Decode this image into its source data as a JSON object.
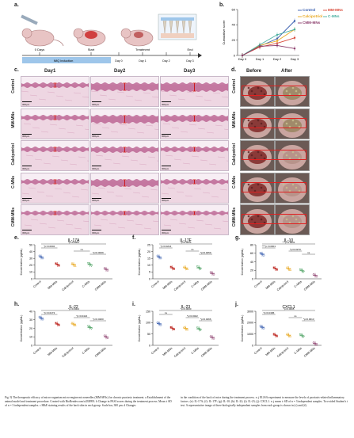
{
  "panel_a": {
    "letter": "a.",
    "labels": [
      "0 Days",
      "Start",
      "Treatment",
      "End"
    ],
    "imq_label": "IMQ induction",
    "days": [
      "Day 0",
      "Day 1",
      "Day 2",
      "Day 3"
    ]
  },
  "panel_b": {
    "letter": "b.",
    "chart_data": {
      "type": "line",
      "title": "",
      "xlabel": "",
      "ylabel": "Cumulative score",
      "categories": [
        "Day 0",
        "Day 1",
        "Day 2",
        "Day 3"
      ],
      "ylim": [
        0,
        60
      ],
      "yticks": [
        0,
        20,
        40,
        60
      ],
      "series": [
        {
          "name": "Control",
          "color": "#3a5fb0",
          "values": [
            0,
            12,
            22,
            45
          ]
        },
        {
          "name": "MM-MNs",
          "color": "#d94a3a",
          "values": [
            0,
            11,
            16,
            23
          ]
        },
        {
          "name": "Calcipotriol",
          "color": "#e8a820",
          "values": [
            0,
            13,
            19,
            34
          ]
        },
        {
          "name": "C-MNs",
          "color": "#4ab0a0",
          "values": [
            0,
            14,
            27,
            34
          ]
        },
        {
          "name": "CMM-MNs",
          "color": "#8a3a6a",
          "values": [
            0,
            12,
            13,
            9
          ]
        }
      ]
    }
  },
  "panel_c": {
    "letter": "c.",
    "columns": [
      "Day1",
      "Day2",
      "Day3"
    ],
    "rows": [
      "Control",
      "MM-MNs",
      "Calcipotriol",
      "C-MNs",
      "CMM-MNs"
    ],
    "scalebar": "300μm"
  },
  "panel_d": {
    "letter": "d.",
    "columns": [
      "Before",
      "After"
    ]
  },
  "bar_panels": [
    {
      "letter": "e.",
      "title": "IL-17A",
      "ylabel": "Concentration (pg/mL)",
      "ylim": [
        0,
        50
      ],
      "yticks": [
        0,
        10,
        20,
        30,
        40,
        50
      ],
      "categories": [
        "Control",
        "MM-MNs",
        "Calcipotriol",
        "C-MNs",
        "CMM-MNs"
      ],
      "values": [
        32,
        21,
        21,
        21,
        14
      ],
      "colors": [
        "#3a5fb0",
        "#c0302a",
        "#e8a820",
        "#4aa060",
        "#8a3a6a"
      ],
      "markers": [
        "circle",
        "square",
        "triangle",
        "triangle-down",
        "diamond"
      ],
      "sig": [
        "*p=0.0002",
        "*p=0.0004",
        "ns",
        "*p=0.0009"
      ]
    },
    {
      "letter": "f.",
      "title": "IL-17F",
      "ylabel": "Concentration (pg/mL)",
      "ylim": [
        0,
        25
      ],
      "yticks": [
        0,
        5,
        10,
        15,
        20,
        25
      ],
      "categories": [
        "Control",
        "MM-MNs",
        "Calcipotriol",
        "C-MNs",
        "CMM-MNs"
      ],
      "values": [
        16,
        8,
        8,
        8,
        4
      ],
      "colors": [
        "#3a5fb0",
        "#c0302a",
        "#e8a820",
        "#4aa060",
        "#8a3a6a"
      ],
      "markers": [
        "circle",
        "square",
        "triangle",
        "triangle-down",
        "diamond"
      ],
      "sig": [
        "*p=0.0214",
        "*p=0.0035",
        "ns",
        "*p=0.0259"
      ]
    },
    {
      "letter": "g.",
      "title": "IL-10",
      "ylabel": "Concentration (pg/mL)",
      "ylim": [
        0,
        80
      ],
      "yticks": [
        0,
        20,
        40,
        60,
        80
      ],
      "categories": [
        "Control",
        "MM-MNs",
        "Calcipotriol",
        "C-MNs",
        "CMM-MNs"
      ],
      "values": [
        58,
        24,
        24,
        19,
        8
      ],
      "colors": [
        "#3a5fb0",
        "#c0302a",
        "#e8a820",
        "#4aa060",
        "#8a3a6a"
      ],
      "markers": [
        "circle",
        "square",
        "triangle",
        "triangle-down",
        "diamond"
      ],
      "sig": [
        "****p<0.0001",
        "***p<0.0001",
        "*p=0.0270",
        "ns"
      ]
    },
    {
      "letter": "h.",
      "title": "IL-22",
      "ylabel": "Concentration (pg/mL)",
      "ylim": [
        0,
        40
      ],
      "yticks": [
        0,
        10,
        20,
        30,
        40
      ],
      "categories": [
        "Control",
        "MM-MNs",
        "Calcipotriol",
        "C-MNs",
        "CMM-MNs"
      ],
      "values": [
        32,
        25,
        25,
        21,
        10
      ],
      "colors": [
        "#3a5fb0",
        "#c0302a",
        "#e8a820",
        "#4aa060",
        "#8a3a6a"
      ],
      "markers": [
        "circle",
        "square",
        "triangle",
        "triangle-down",
        "diamond"
      ],
      "sig": [
        "*p=0.0173",
        "*p=0.0004",
        "*p=0.0424",
        "*p=0.0200"
      ]
    },
    {
      "letter": "i.",
      "title": "IL-23",
      "ylabel": "Concentration (pg/mL)",
      "ylim": [
        0,
        150
      ],
      "yticks": [
        0,
        50,
        100,
        150
      ],
      "categories": [
        "Control",
        "MM-MNs",
        "Calcipotriol",
        "C-MNs",
        "CMM-MNs"
      ],
      "values": [
        95,
        75,
        75,
        72,
        35
      ],
      "colors": [
        "#3a5fb0",
        "#c0302a",
        "#e8a820",
        "#4aa060",
        "#8a3a6a"
      ],
      "markers": [
        "circle",
        "square",
        "triangle",
        "triangle-down",
        "diamond"
      ],
      "sig": [
        "ns",
        "*p=0.0030",
        "*p=0.0022",
        "*p=0.0466"
      ]
    },
    {
      "letter": "j.",
      "title": "CXCL1",
      "ylabel": "Concentration (pg/mL)",
      "ylim": [
        0,
        3000
      ],
      "yticks": [
        0,
        1000,
        2000,
        3000
      ],
      "categories": [
        "Control",
        "MM-MNs",
        "Calcipotriol",
        "C-MNs",
        "CMM-MNs"
      ],
      "values": [
        1600,
        900,
        900,
        850,
        150
      ],
      "colors": [
        "#3a5fb0",
        "#c0302a",
        "#e8a820",
        "#4aa060",
        "#8a3a6a"
      ],
      "markers": [
        "circle",
        "square",
        "triangle",
        "triangle-down",
        "diamond"
      ],
      "sig": [
        "*p=0.0186",
        "*p=0.0008",
        "ns",
        "*p=0.0013"
      ]
    }
  ],
  "caption": {
    "left": "Fig. 9| The therapeutic efficacy of micro-organism micro-engine microneedles (MM-MNs) for chronic psoriasis treatment. a Establishment of the animal model and treatment procedure. Created with BioRender.com/u33B993. b Change in PASI scores during the treatment process. Mean ± SD of n = 3 independent samples. c H&E staining results of the back skin in each group. Scale bar, 300 μm. d Changes",
    "right": "in the condition of the back of mice during the treatment process. e–j ELISA experiment to measure the levels of psoriasis-related inflammatory factors. (e): IL-17A; (f): IL-17F; (g): IL-10; (h): IL-22; (i): IL-23; (j): CXCL1. e–j mean ± SD of n = 3 independent samples. Two-sided Student's t test. A representative image of three biologically independent samples from each group is shown in (c) and (d)."
  }
}
